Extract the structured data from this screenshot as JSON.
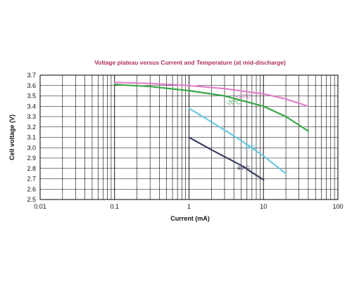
{
  "chart_data": {
    "type": "line",
    "title": "Voltage plateau versus Current and Temperature (at mid-discharge)",
    "xlabel": "Current (mA)",
    "ylabel": "Cell voltage (V)",
    "xscale": "log",
    "xlim": [
      0.01,
      100
    ],
    "ylim": [
      2.5,
      3.7
    ],
    "x_ticks": [
      0.01,
      0.1,
      1,
      10,
      100
    ],
    "x_tick_labels": [
      "0.01",
      "0.1",
      "1",
      "10",
      "100"
    ],
    "y_ticks": [
      2.5,
      2.6,
      2.7,
      2.8,
      2.9,
      3.0,
      3.1,
      3.2,
      3.3,
      3.4,
      3.5,
      3.6,
      3.7
    ],
    "y_tick_labels": [
      "2.5",
      "2.6",
      "2.7",
      "2.8",
      "2.9",
      "3.0",
      "3.1",
      "3.2",
      "3.3",
      "3.4",
      "3.5",
      "3.6",
      "3.7"
    ],
    "grid": true,
    "series": [
      {
        "name": "+20°C",
        "color": "#e080c8",
        "x": [
          0.1,
          0.3,
          1,
          3,
          10,
          20,
          40
        ],
        "y": [
          3.63,
          3.62,
          3.6,
          3.57,
          3.52,
          3.47,
          3.4
        ]
      },
      {
        "name": "-20°C",
        "color": "#3aa84a",
        "x": [
          0.1,
          0.3,
          1,
          3,
          10,
          20,
          40
        ],
        "y": [
          3.61,
          3.59,
          3.55,
          3.5,
          3.4,
          3.3,
          3.16
        ]
      },
      {
        "name": "-30°C",
        "color": "#6cc8e0",
        "x": [
          1,
          2,
          5,
          10,
          20
        ],
        "y": [
          3.38,
          3.25,
          3.07,
          2.92,
          2.75
        ]
      },
      {
        "name": "-40°C",
        "color": "#3a3f60",
        "x": [
          1,
          2,
          5,
          10
        ],
        "y": [
          3.1,
          2.98,
          2.83,
          2.69
        ]
      }
    ]
  }
}
